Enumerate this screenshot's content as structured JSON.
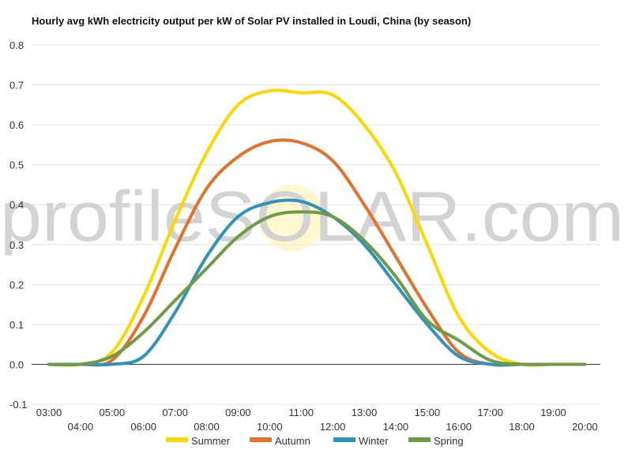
{
  "chart_data": {
    "type": "line",
    "title": "Hourly avg kWh electricity output per kW of Solar PV installed in Loudi, China (by season)",
    "watermark": "profileSOLAR.com",
    "xlabel": "",
    "ylabel": "",
    "ylim": [
      -0.1,
      0.8
    ],
    "yticks": [
      "-0.1",
      "0.0",
      "0.1",
      "0.2",
      "0.3",
      "0.4",
      "0.5",
      "0.6",
      "0.7",
      "0.8"
    ],
    "x": [
      "03:00",
      "04:00",
      "05:00",
      "06:00",
      "07:00",
      "08:00",
      "09:00",
      "10:00",
      "11:00",
      "12:00",
      "13:00",
      "14:00",
      "15:00",
      "16:00",
      "17:00",
      "18:00",
      "19:00",
      "20:00"
    ],
    "grid": true,
    "legend_position": "bottom",
    "series": [
      {
        "name": "Summer",
        "color": "#FFD700",
        "values": [
          0.0,
          0.0,
          0.03,
          0.17,
          0.36,
          0.53,
          0.65,
          0.685,
          0.68,
          0.675,
          0.6,
          0.48,
          0.3,
          0.12,
          0.03,
          0.0,
          0.0,
          0.0
        ]
      },
      {
        "name": "Autumn",
        "color": "#E3712A",
        "values": [
          0.0,
          0.0,
          0.01,
          0.12,
          0.29,
          0.44,
          0.52,
          0.558,
          0.555,
          0.51,
          0.4,
          0.27,
          0.14,
          0.03,
          0.0,
          0.0,
          0.0,
          0.0
        ]
      },
      {
        "name": "Winter",
        "color": "#2E94BB",
        "values": [
          0.0,
          0.0,
          0.0,
          0.02,
          0.13,
          0.27,
          0.37,
          0.405,
          0.408,
          0.37,
          0.3,
          0.2,
          0.1,
          0.02,
          0.0,
          0.0,
          0.0,
          0.0
        ]
      },
      {
        "name": "Spring",
        "color": "#6F9A46",
        "values": [
          0.0,
          0.0,
          0.02,
          0.08,
          0.16,
          0.24,
          0.32,
          0.37,
          0.382,
          0.37,
          0.31,
          0.22,
          0.11,
          0.06,
          0.01,
          0.0,
          0.0,
          0.0
        ]
      }
    ]
  }
}
